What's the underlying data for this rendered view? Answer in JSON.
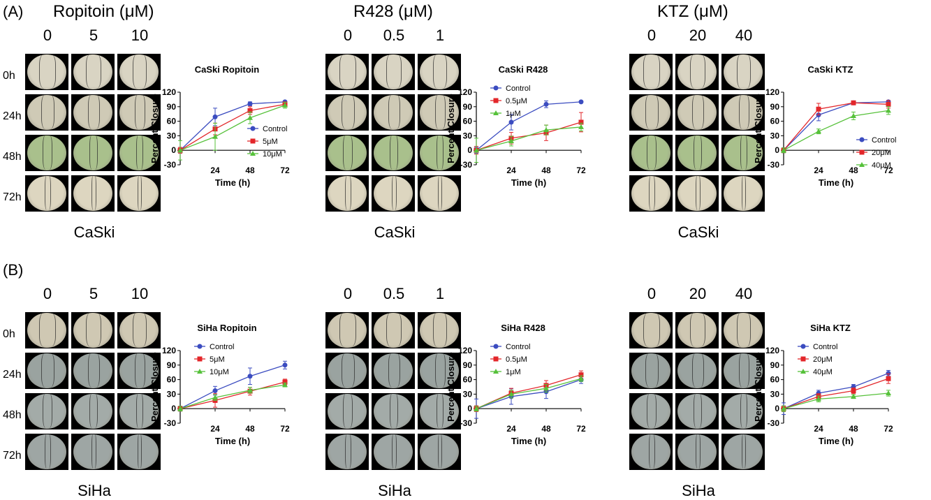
{
  "panels": [
    {
      "label": "(A)",
      "cell_line": "CaSki",
      "time_labels": [
        "0h",
        "24h",
        "48h",
        "72h"
      ],
      "groups": [
        {
          "drug_title": "Ropitoin (μM)",
          "concentrations": [
            "0",
            "5",
            "10"
          ],
          "chart": {
            "type": "line",
            "title": "CaSki Ropitoin",
            "xlabel": "Time (h)",
            "ylabel": "Percent Closure",
            "x": [
              0,
              24,
              48,
              72
            ],
            "xticks": [
              "24",
              "48",
              "72"
            ],
            "ylim": [
              -30,
              120
            ],
            "yticks": [
              "-30",
              "0",
              "30",
              "60",
              "90",
              "120"
            ],
            "legend": "bottom-right",
            "series": [
              {
                "name": "Control",
                "color": "#3b4cc0",
                "marker": "circle",
                "values": [
                  0,
                  69,
                  96,
                  100
                ],
                "err": [
                  6,
                  18,
                  4,
                  2
                ]
              },
              {
                "name": "5μM",
                "color": "#e3262a",
                "marker": "square",
                "values": [
                  0,
                  44,
                  82,
                  95
                ],
                "err": [
                  6,
                  12,
                  8,
                  5
                ]
              },
              {
                "name": "10μM",
                "color": "#56c13a",
                "marker": "triangle",
                "values": [
                  0,
                  28,
                  67,
                  93
                ],
                "err": [
                  20,
                  28,
                  12,
                  6
                ]
              }
            ]
          }
        },
        {
          "drug_title": "R428 (μM)",
          "concentrations": [
            "0",
            "0.5",
            "1"
          ],
          "chart": {
            "type": "line",
            "title": "CaSki R428",
            "xlabel": "Time (h)",
            "ylabel": "Percent Closure",
            "x": [
              0,
              24,
              48,
              72
            ],
            "xticks": [
              "24",
              "48",
              "72"
            ],
            "ylim": [
              -30,
              120
            ],
            "yticks": [
              "-30",
              "0",
              "30",
              "60",
              "90",
              "120"
            ],
            "legend": "top-left",
            "series": [
              {
                "name": "Control",
                "color": "#3b4cc0",
                "marker": "circle",
                "values": [
                  0,
                  58,
                  95,
                  100
                ],
                "err": [
                  6,
                  16,
                  7,
                  1
                ]
              },
              {
                "name": "0.5μM",
                "color": "#e3262a",
                "marker": "square",
                "values": [
                  0,
                  25,
                  36,
                  58
                ],
                "err": [
                  8,
                  12,
                  16,
                  20
                ]
              },
              {
                "name": "1μM",
                "color": "#56c13a",
                "marker": "triangle",
                "values": [
                  0,
                  19,
                  42,
                  48
                ],
                "err": [
                  25,
                  10,
                  10,
                  8
                ]
              }
            ]
          }
        },
        {
          "drug_title": "KTZ (μM)",
          "concentrations": [
            "0",
            "20",
            "40"
          ],
          "chart": {
            "type": "line",
            "title": "CaSki KTZ",
            "xlabel": "Time (h)",
            "ylabel": "Percent Closure",
            "x": [
              0,
              24,
              48,
              72
            ],
            "xticks": [
              "24",
              "48",
              "72"
            ],
            "ylim": [
              -30,
              120
            ],
            "yticks": [
              "-30",
              "0",
              "30",
              "60",
              "90",
              "120"
            ],
            "legend": "top-right",
            "series": [
              {
                "name": "Control",
                "color": "#3b4cc0",
                "marker": "circle",
                "values": [
                  0,
                  73,
                  98,
                  100
                ],
                "err": [
                  5,
                  12,
                  3,
                  3
                ]
              },
              {
                "name": "20μM",
                "color": "#e3262a",
                "marker": "square",
                "values": [
                  0,
                  85,
                  98,
                  95
                ],
                "err": [
                  5,
                  12,
                  3,
                  8
                ]
              },
              {
                "name": "40μM",
                "color": "#56c13a",
                "marker": "triangle",
                "values": [
                  0,
                  39,
                  71,
                  82
                ],
                "err": [
                  5,
                  5,
                  8,
                  8
                ]
              }
            ]
          }
        }
      ]
    },
    {
      "label": "(B)",
      "cell_line": "SiHa",
      "time_labels": [
        "0h",
        "24h",
        "48h",
        "72h"
      ],
      "groups": [
        {
          "drug_title": "",
          "concentrations": [
            "0",
            "5",
            "10"
          ],
          "chart": {
            "type": "line",
            "title": "SiHa Ropitoin",
            "xlabel": "Time (h)",
            "ylabel": "Percent Closure",
            "x": [
              0,
              24,
              48,
              72
            ],
            "xticks": [
              "24",
              "48",
              "72"
            ],
            "ylim": [
              -30,
              120
            ],
            "yticks": [
              "-30",
              "0",
              "30",
              "60",
              "90",
              "120"
            ],
            "legend": "top-left",
            "series": [
              {
                "name": "Control",
                "color": "#3b4cc0",
                "marker": "circle",
                "values": [
                  0,
                  37,
                  67,
                  90
                ],
                "err": [
                  5,
                  9,
                  17,
                  8
                ]
              },
              {
                "name": "5μM",
                "color": "#e3262a",
                "marker": "square",
                "values": [
                  0,
                  17,
                  36,
                  55
                ],
                "err": [
                  5,
                  14,
                  8,
                  6
                ]
              },
              {
                "name": "10μM",
                "color": "#56c13a",
                "marker": "triangle",
                "values": [
                  0,
                  23,
                  38,
                  49
                ],
                "err": [
                  5,
                  6,
                  6,
                  4
                ]
              }
            ]
          }
        },
        {
          "drug_title": "",
          "concentrations": [
            "0",
            "0.5",
            "1"
          ],
          "chart": {
            "type": "line",
            "title": "SiHa R428",
            "xlabel": "Time (h)",
            "ylabel": "Percent Closure",
            "x": [
              0,
              24,
              48,
              72
            ],
            "xticks": [
              "24",
              "48",
              "72"
            ],
            "ylim": [
              -30,
              120
            ],
            "yticks": [
              "-30",
              "0",
              "30",
              "60",
              "90",
              "120"
            ],
            "legend": "top-left",
            "series": [
              {
                "name": "Control",
                "color": "#3b4cc0",
                "marker": "circle",
                "values": [
                  0,
                  25,
                  35,
                  60
                ],
                "err": [
                  20,
                  16,
                  14,
                  8
                ]
              },
              {
                "name": "0.5μM",
                "color": "#e3262a",
                "marker": "square",
                "values": [
                  0,
                  32,
                  48,
                  70
                ],
                "err": [
                  6,
                  10,
                  10,
                  8
                ]
              },
              {
                "name": "1μM",
                "color": "#56c13a",
                "marker": "triangle",
                "values": [
                  0,
                  30,
                  42,
                  62
                ],
                "err": [
                  5,
                  8,
                  8,
                  6
                ]
              }
            ]
          }
        },
        {
          "drug_title": "",
          "concentrations": [
            "0",
            "20",
            "40"
          ],
          "chart": {
            "type": "line",
            "title": "SiHa KTZ",
            "xlabel": "Time (h)",
            "ylabel": "Percent Closure",
            "x": [
              0,
              24,
              48,
              72
            ],
            "xticks": [
              "24",
              "48",
              "72"
            ],
            "ylim": [
              -30,
              120
            ],
            "yticks": [
              "-30",
              "0",
              "30",
              "60",
              "90",
              "120"
            ],
            "legend": "top-left",
            "series": [
              {
                "name": "Control",
                "color": "#3b4cc0",
                "marker": "circle",
                "values": [
                  0,
                  32,
                  45,
                  73
                ],
                "err": [
                  12,
                  6,
                  5,
                  6
                ]
              },
              {
                "name": "20μM",
                "color": "#e3262a",
                "marker": "square",
                "values": [
                  0,
                  25,
                  37,
                  62
                ],
                "err": [
                  6,
                  6,
                  6,
                  10
                ]
              },
              {
                "name": "40μM",
                "color": "#56c13a",
                "marker": "triangle",
                "values": [
                  0,
                  20,
                  25,
                  32
                ],
                "err": [
                  6,
                  6,
                  4,
                  6
                ]
              }
            ]
          }
        }
      ]
    }
  ],
  "tile_colors": {
    "A": [
      "#d9d4c3",
      "#cfcab6",
      "#a9c08c",
      "#ddd6c0"
    ],
    "B": [
      "#cfc8b3",
      "#9aa3a0",
      "#a3aba8",
      "#9ea6a4"
    ]
  }
}
